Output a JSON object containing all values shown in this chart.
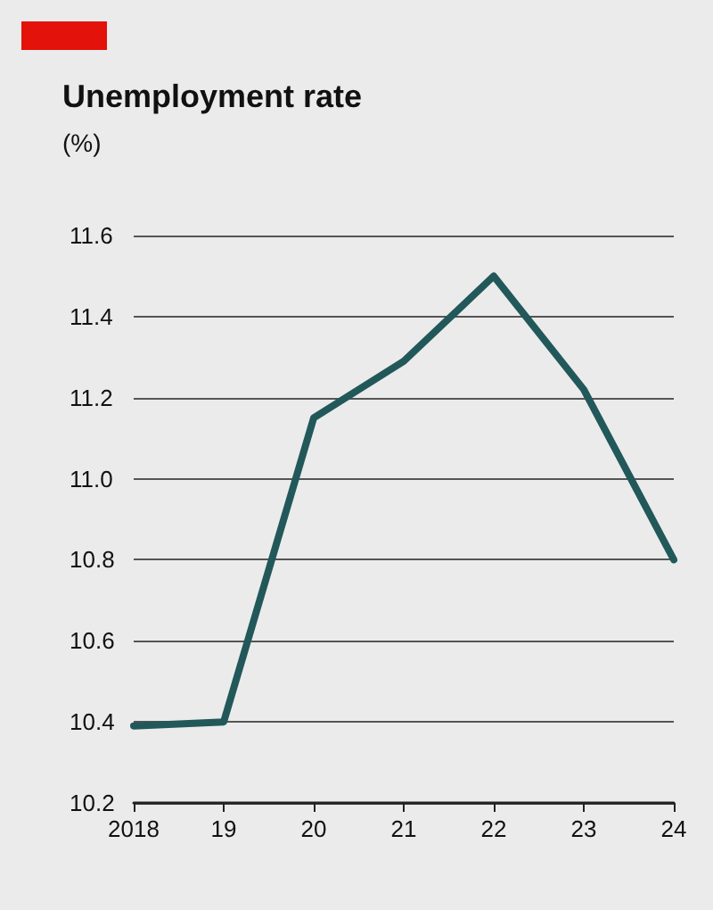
{
  "chart_data": {
    "type": "line",
    "title": "Unemployment rate",
    "subtitle": "(%)",
    "categories": [
      "2018",
      "19",
      "20",
      "21",
      "22",
      "23",
      "24"
    ],
    "series": [
      {
        "color": "#22585a",
        "values": [
          10.39,
          10.4,
          11.15,
          11.29,
          11.5,
          11.22,
          10.8
        ]
      }
    ],
    "ylim": [
      10.2,
      11.6
    ],
    "yticks": [
      10.2,
      10.4,
      10.6,
      10.8,
      {
        "value": 11,
        "label": "11.0"
      },
      11.2,
      11.4,
      11.6
    ],
    "grid": "y",
    "marker": "none",
    "line_style": "solid"
  }
}
